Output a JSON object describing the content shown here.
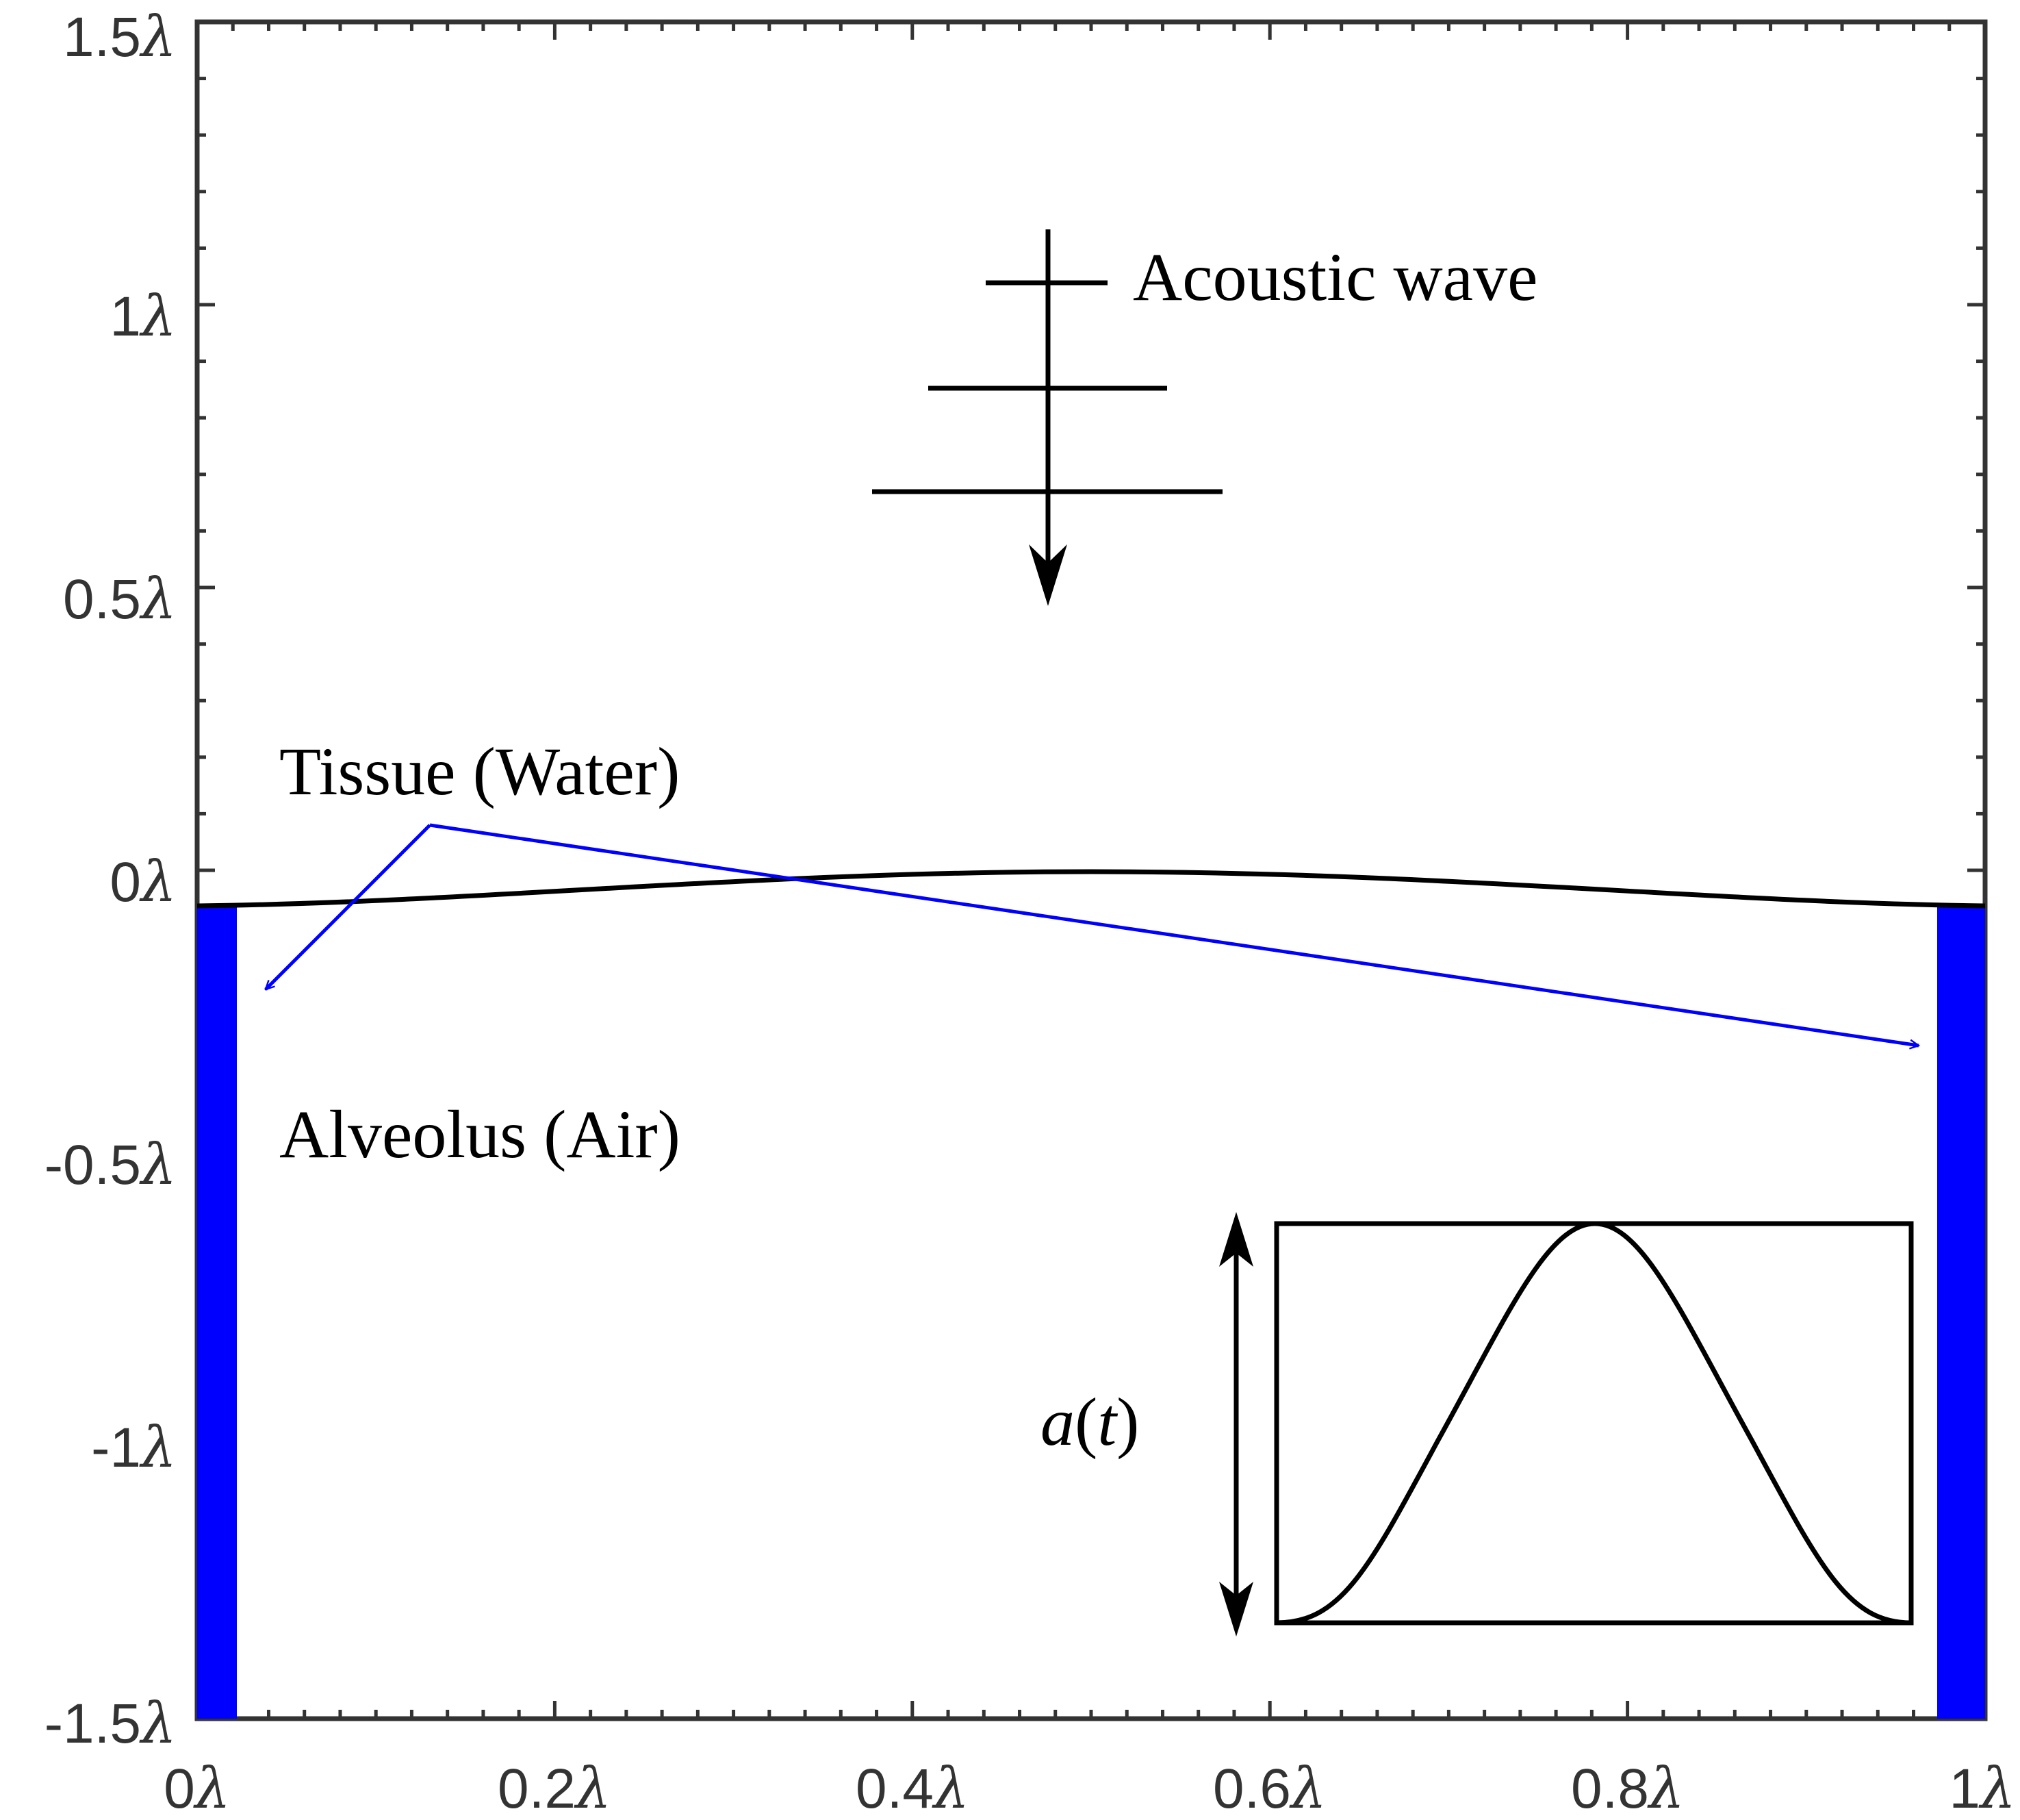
{
  "axes": {
    "x_ticks": [
      "0",
      "0.2",
      "0.4",
      "0.6",
      "0.8",
      "1"
    ],
    "y_ticks": [
      "1.5",
      "1",
      "0.5",
      "0",
      "-0.5",
      "-1",
      "-1.5"
    ],
    "unit_symbol": "λ"
  },
  "labels": {
    "acoustic_wave": "Acoustic wave",
    "tissue": "Tissue (Water)",
    "alveolus": "Alveolus (Air)",
    "amplitude_fn": "a",
    "amplitude_arg": "t"
  },
  "colors": {
    "wall": "#0000ff",
    "arrow": "#0000ff",
    "axis": "#333333",
    "interface": "#000000"
  },
  "icons": {
    "wave_direction": "arrow-down-icon",
    "amplitude": "double-arrow-vertical-icon"
  }
}
